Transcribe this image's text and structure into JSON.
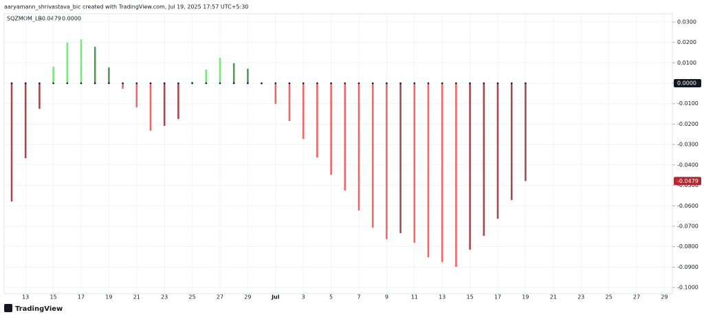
{
  "chart_data": {
    "type": "bar",
    "header": "aaryamann_shrivastava_bic created with TradingView.com, Jul 19, 2025 17:57 UTC+5:30",
    "indicator": {
      "name": "SQZMOM_LB",
      "values": [
        "-0.0479",
        "0.0000"
      ],
      "colors": [
        "#b22833",
        "#131722"
      ]
    },
    "footer": "TradingView",
    "categories": [
      null,
      "13",
      null,
      "15",
      null,
      "17",
      null,
      "19",
      null,
      "21",
      null,
      "23",
      null,
      "25",
      null,
      "27",
      null,
      "29",
      null,
      "Jul",
      null,
      "3",
      null,
      "5",
      null,
      "7",
      null,
      "9",
      null,
      "11",
      null,
      "13",
      null,
      "15",
      null,
      "17",
      null,
      "19",
      null,
      "21",
      null,
      "23",
      null,
      "25",
      null,
      "27",
      null,
      "29"
    ],
    "values": [
      -0.0579,
      -0.0367,
      -0.0125,
      0.0081,
      0.0199,
      0.0215,
      0.0178,
      0.0077,
      -0.0027,
      -0.0118,
      -0.0232,
      -0.0209,
      -0.0175,
      0.0005,
      0.0067,
      0.0125,
      0.0098,
      0.0071,
      -0.0005,
      -0.0101,
      -0.0185,
      -0.0273,
      -0.0364,
      -0.0448,
      -0.0525,
      -0.0623,
      -0.0707,
      -0.0764,
      -0.0734,
      -0.0781,
      -0.0852,
      -0.0875,
      -0.0899,
      -0.0815,
      -0.0747,
      -0.0663,
      -0.0572,
      -0.0479,
      null,
      null,
      null,
      null,
      null,
      null,
      null,
      null,
      null,
      null
    ],
    "colors": [
      "#a34a4d",
      "#a34a4d",
      "#a34a4d",
      "#78e878",
      "#78e878",
      "#78e878",
      "#4f9a55",
      "#4f9a55",
      "#ee6666",
      "#ee6666",
      "#ee6666",
      "#a34a4d",
      "#a34a4d",
      "#4f9a55",
      "#78e878",
      "#78e878",
      "#4f9a55",
      "#4f9a55",
      "#a34a4d",
      "#ee6666",
      "#ee6666",
      "#ee6666",
      "#ee6666",
      "#ee6666",
      "#ee6666",
      "#ee6666",
      "#ee6666",
      "#ee6666",
      "#a34a4d",
      "#ee6666",
      "#ee6666",
      "#ee6666",
      "#ee6666",
      "#a34a4d",
      "#a34a4d",
      "#a34a4d",
      "#a34a4d",
      "#a34a4d",
      null,
      null,
      null,
      null,
      null,
      null,
      null,
      null,
      null,
      null
    ],
    "ylim": [
      -0.103,
      0.034
    ],
    "yticks": [
      {
        "value": 0.03,
        "label": "0.0300"
      },
      {
        "value": 0.02,
        "label": "0.0200"
      },
      {
        "value": 0.01,
        "label": "0.0100"
      },
      {
        "value": 0,
        "label": "0.0000"
      },
      {
        "value": -0.01,
        "label": "-0.0100"
      },
      {
        "value": -0.02,
        "label": "-0.0200"
      },
      {
        "value": -0.03,
        "label": "-0.0300"
      },
      {
        "value": -0.04,
        "label": "-0.0400"
      },
      {
        "value": -0.05,
        "label": "-0.0500"
      },
      {
        "value": -0.06,
        "label": "-0.0600"
      },
      {
        "value": -0.07,
        "label": "-0.0700"
      },
      {
        "value": -0.08,
        "label": "-0.0800"
      },
      {
        "value": -0.09,
        "label": "-0.0900"
      },
      {
        "value": -0.1,
        "label": "-0.1000"
      }
    ],
    "grid": true
  }
}
